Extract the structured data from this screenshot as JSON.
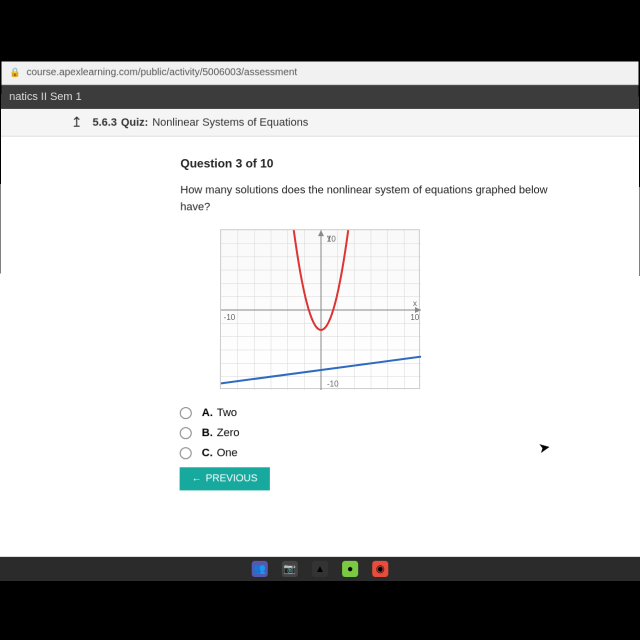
{
  "url_bar": {
    "lock": "🔒",
    "url": "course.apexlearning.com/public/activity/5006003/assessment"
  },
  "tab": {
    "title": "natics II Sem 1"
  },
  "title_bar": {
    "back": "↥",
    "quiz_num": "5.6.3",
    "quiz_word": "Quiz:",
    "quiz_title": "Nonlinear Systems of Equations"
  },
  "question": {
    "label": "Question 3 of 10",
    "text": "How many solutions does the nonlinear system of equations graphed below have?"
  },
  "graph": {
    "type": "cartesian",
    "xlim": [
      -12,
      12
    ],
    "ylim": [
      -12,
      12
    ],
    "xticks": [
      -10,
      10
    ],
    "yticks": [
      -10,
      10
    ],
    "axis_label_x": "x",
    "axis_label_y": "y",
    "axis_color": "#888",
    "grid_color": "#d8d8d8",
    "tick_labels": {
      "neg10": "-10",
      "pos10": "10"
    },
    "curves": [
      {
        "type": "parabola",
        "color": "#d33",
        "stroke_width": 2,
        "vertex": [
          0,
          -3
        ],
        "points": [
          [
            -3,
            10
          ],
          [
            -2,
            3
          ],
          [
            -1,
            -2
          ],
          [
            0,
            -3
          ],
          [
            1,
            -2
          ],
          [
            2,
            3
          ],
          [
            3,
            10
          ]
        ]
      },
      {
        "type": "line",
        "color": "#2e6bbf",
        "stroke_width": 2,
        "points": [
          [
            -12,
            -11
          ],
          [
            12,
            -7
          ]
        ]
      }
    ],
    "label_fontsize": 8,
    "background": "#ffffff"
  },
  "options": [
    {
      "letter": "A.",
      "text": "Two"
    },
    {
      "letter": "B.",
      "text": "Zero"
    },
    {
      "letter": "C.",
      "text": "One"
    }
  ],
  "buttons": {
    "previous": "PREVIOUS"
  },
  "taskbar_icons": [
    {
      "name": "teams",
      "bg": "#5558af",
      "glyph": "👥"
    },
    {
      "name": "camera",
      "bg": "#444",
      "glyph": "📷"
    },
    {
      "name": "drive",
      "bg": "#333",
      "glyph": "▲"
    },
    {
      "name": "app1",
      "bg": "#7ac943",
      "glyph": "●"
    },
    {
      "name": "app2",
      "bg": "#e74c3c",
      "glyph": "◉"
    }
  ]
}
